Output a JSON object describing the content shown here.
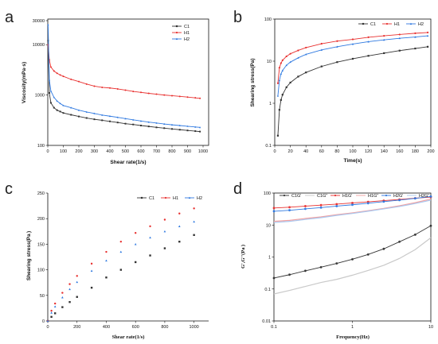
{
  "panels": [
    "a",
    "b",
    "c",
    "d"
  ],
  "chart_data": [
    {
      "panel": "a",
      "type": "line",
      "xlabel": "Shear rate(1/s)",
      "ylabel": "Viscosity(mPa·s)",
      "yscale": "log",
      "xlim": [
        0,
        1000
      ],
      "ylim": [
        100,
        30000
      ],
      "xticks": [
        "0",
        "100",
        "200",
        "300",
        "400",
        "500",
        "600",
        "700",
        "800",
        "900",
        "1000"
      ],
      "yticks": [
        "100",
        "1000",
        "10000",
        "30000"
      ],
      "legend_position": "top-right",
      "x": [
        2,
        10,
        20,
        40,
        60,
        80,
        100,
        150,
        200,
        250,
        300,
        350,
        400,
        450,
        500,
        550,
        600,
        650,
        700,
        750,
        800,
        850,
        900,
        950,
        980
      ],
      "series": [
        {
          "name": "C1",
          "color": "#333333",
          "marker": "square",
          "values": [
            12000,
            1100,
            700,
            560,
            500,
            470,
            440,
            405,
            375,
            350,
            330,
            315,
            300,
            285,
            270,
            260,
            248,
            238,
            228,
            220,
            212,
            205,
            198,
            192,
            188
          ]
        },
        {
          "name": "H1",
          "color": "#e8302f",
          "marker": "circle",
          "values": [
            10000,
            5000,
            3600,
            3000,
            2700,
            2500,
            2350,
            2050,
            1850,
            1650,
            1500,
            1420,
            1380,
            1320,
            1250,
            1180,
            1130,
            1080,
            1040,
            1000,
            970,
            940,
            910,
            880,
            860
          ]
        },
        {
          "name": "H2",
          "color": "#2f79e0",
          "marker": "triangle",
          "values": [
            25000,
            2000,
            1200,
            900,
            760,
            680,
            620,
            560,
            500,
            460,
            430,
            400,
            380,
            360,
            340,
            322,
            305,
            290,
            278,
            266,
            256,
            248,
            240,
            232,
            228
          ]
        }
      ]
    },
    {
      "panel": "b",
      "type": "line",
      "xlabel": "Time(s)",
      "ylabel": "Shearing stress(Pa)",
      "yscale": "log",
      "xlim": [
        0,
        200
      ],
      "ylim": [
        0.1,
        100
      ],
      "xticks": [
        "0",
        "20",
        "40",
        "60",
        "80",
        "100",
        "120",
        "140",
        "160",
        "180",
        "200"
      ],
      "yticks": [
        "0.1",
        "1",
        "10",
        "100"
      ],
      "legend_position": "top-right",
      "x": [
        4,
        6,
        8,
        10,
        15,
        20,
        30,
        40,
        60,
        80,
        100,
        120,
        140,
        160,
        180,
        196
      ],
      "series": [
        {
          "name": "C1",
          "color": "#333333",
          "marker": "square",
          "values": [
            0.17,
            0.7,
            1.2,
            1.6,
            2.4,
            3.1,
            4.3,
            5.4,
            7.5,
            9.5,
            11.4,
            13.4,
            15.5,
            17.8,
            20.0,
            22.0
          ]
        },
        {
          "name": "H1",
          "color": "#e8302f",
          "marker": "circle",
          "values": [
            3.0,
            7.0,
            9.0,
            10.5,
            13.0,
            15.0,
            18.0,
            21.0,
            26.0,
            30.0,
            33.0,
            37.0,
            40.0,
            43.0,
            46.0,
            48.0
          ]
        },
        {
          "name": "H2",
          "color": "#2f79e0",
          "marker": "triangle",
          "values": [
            1.5,
            3.5,
            5.0,
            6.0,
            8.0,
            9.5,
            12.0,
            14.5,
            18.5,
            22.0,
            25.5,
            29.0,
            32.0,
            35.0,
            37.5,
            40.0
          ]
        }
      ]
    },
    {
      "panel": "c",
      "type": "scatter",
      "xlabel": "Shear rate(1/s)",
      "ylabel": "Shearing stress(Pa )",
      "xlim": [
        0,
        1100
      ],
      "ylim": [
        0,
        250
      ],
      "xticks": [
        "0",
        "200",
        "400",
        "600",
        "800",
        "1000"
      ],
      "yticks": [
        "0",
        "50",
        "100",
        "150",
        "200",
        "250"
      ],
      "legend_position": "top-right",
      "x": [
        0,
        25,
        50,
        100,
        150,
        200,
        300,
        400,
        500,
        600,
        700,
        800,
        900,
        1000
      ],
      "series": [
        {
          "name": "C1",
          "color": "#333333",
          "marker": "square",
          "values": [
            0,
            8,
            15,
            27,
            37,
            47,
            65,
            85,
            100,
            115,
            128,
            142,
            155,
            168
          ]
        },
        {
          "name": "H1",
          "color": "#e8302f",
          "marker": "circle",
          "values": [
            0,
            20,
            34,
            55,
            72,
            88,
            112,
            135,
            155,
            172,
            185,
            198,
            210,
            220
          ]
        },
        {
          "name": "H2",
          "color": "#2f79e0",
          "marker": "triangle",
          "values": [
            0,
            16,
            28,
            46,
            62,
            76,
            98,
            118,
            135,
            150,
            163,
            175,
            185,
            194
          ]
        }
      ]
    },
    {
      "panel": "d",
      "type": "line",
      "xlabel": "Frequency(Hz)",
      "ylabel": "G',G''(Pa )",
      "xscale": "log",
      "yscale": "log",
      "xlim": [
        0.1,
        10
      ],
      "ylim": [
        0.01,
        100
      ],
      "xticks": [
        "0.1",
        "1",
        "10"
      ],
      "yticks": [
        "0.01",
        "0.1",
        "1",
        "10",
        "100"
      ],
      "legend_position": "top",
      "x": [
        0.1,
        0.158,
        0.251,
        0.398,
        0.631,
        1.0,
        1.585,
        2.512,
        3.981,
        6.31,
        10.0
      ],
      "series": [
        {
          "name": "C1G'",
          "color": "#333333",
          "marker": "star",
          "values": [
            0.22,
            0.28,
            0.37,
            0.48,
            0.63,
            0.85,
            1.2,
            1.8,
            3.0,
            5.0,
            9.5
          ]
        },
        {
          "name": "C1G''",
          "color": "#c9c9c9",
          "marker": "none",
          "values": [
            0.07,
            0.09,
            0.12,
            0.16,
            0.2,
            0.27,
            0.38,
            0.55,
            0.9,
            1.7,
            4.0
          ]
        },
        {
          "name": "H1G'",
          "color": "#e8302f",
          "marker": "star",
          "values": [
            34,
            36,
            39,
            42,
            45,
            49,
            53,
            58,
            63,
            69,
            75
          ]
        },
        {
          "name": "H1G''",
          "color": "#f2a0a0",
          "marker": "none",
          "values": [
            13,
            14,
            16,
            18,
            21,
            24,
            28,
            33,
            40,
            50,
            65
          ]
        },
        {
          "name": "H2G'",
          "color": "#2f79e0",
          "marker": "star",
          "values": [
            27,
            29,
            32,
            35,
            39,
            43,
            48,
            54,
            60,
            68,
            78
          ]
        },
        {
          "name": "H2G''",
          "color": "#a9c8f0",
          "marker": "none",
          "values": [
            12,
            13,
            15,
            17,
            20,
            23,
            27,
            32,
            38,
            47,
            60
          ]
        }
      ]
    }
  ]
}
